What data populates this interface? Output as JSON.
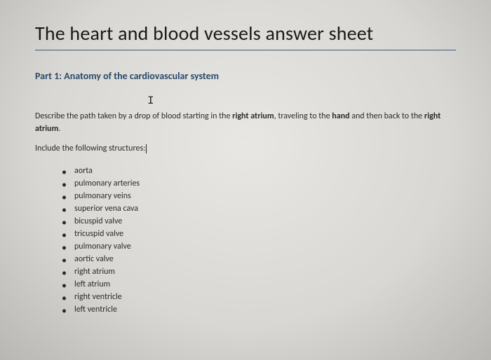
{
  "document": {
    "title": "The heart and blood vessels answer sheet",
    "section": {
      "heading": "Part 1: Anatomy of the cardiovascular system",
      "cursor_glyph": "I",
      "prompt_pre": "Describe the path taken by a drop of blood starting in the ",
      "bold1": "right atrium",
      "prompt_mid": ", traveling to the ",
      "bold2": "hand",
      "prompt_mid2": " and then back to the ",
      "bold3": "right atrium",
      "prompt_end": ".",
      "include_label": "Include the following structures:",
      "structures": [
        "aorta",
        "pulmonary arteries",
        "pulmonary veins",
        "superior vena cava",
        "bicuspid valve",
        "tricuspid valve",
        "pulmonary valve",
        "aortic valve",
        "right atrium",
        "left atrium",
        "right ventricle",
        "left ventricle"
      ]
    }
  },
  "colors": {
    "title_text": "#1a1a1a",
    "title_underline": "#3a5a7a",
    "section_heading": "#2a4a6a",
    "body_text": "#2a2a2a",
    "background_center": "#e8e7e3",
    "background_edge": "#b8b7b3"
  },
  "typography": {
    "title_fontsize": 28,
    "heading_fontsize": 14,
    "body_fontsize": 12,
    "font_family": "Calibri"
  }
}
